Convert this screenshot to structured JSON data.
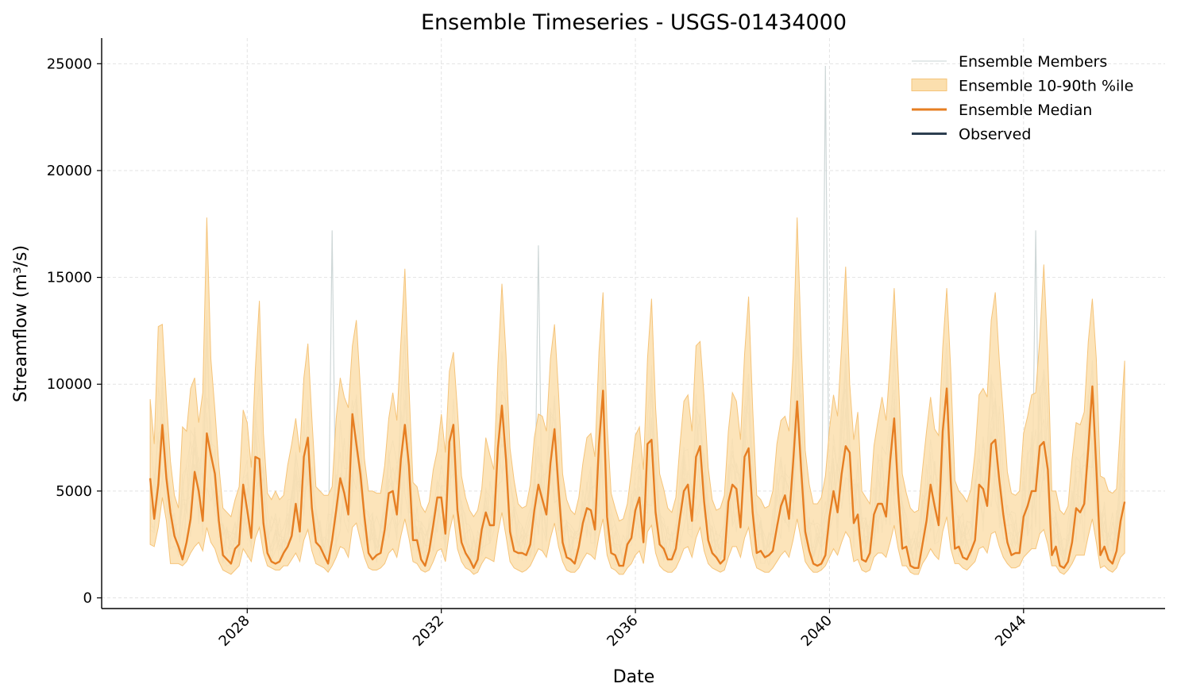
{
  "chart_data": {
    "type": "line",
    "title": "Ensemble Timeseries - USGS-01434000",
    "xlabel": "Date",
    "ylabel": "Streamflow (m³/s)",
    "x_type": "date",
    "xlim": [
      "2025-01-01",
      "2046-12-01"
    ],
    "ylim": [
      -500,
      26200
    ],
    "yticks": [
      0,
      5000,
      10000,
      15000,
      20000,
      25000
    ],
    "xticks": [
      "2028",
      "2032",
      "2036",
      "2040",
      "2044"
    ],
    "grid": true,
    "legend_position": "top-right",
    "legend": [
      {
        "label": "Ensemble Members",
        "kind": "line",
        "color": "#c9d3d3"
      },
      {
        "label": "Ensemble 10-90th %ile",
        "kind": "patch",
        "color": "#fbdfae"
      },
      {
        "label": "Ensemble Median",
        "kind": "line",
        "color": "#e67e22"
      },
      {
        "label": "Observed",
        "kind": "line",
        "color": "#2c3e50"
      }
    ],
    "colors": {
      "members": "#c9d3d3",
      "band_fill": "#fbdfae",
      "band_edge": "#f5c47a",
      "median": "#e67e22",
      "observed": "#2c3e50"
    },
    "dates_start": "2026-01",
    "dates_step": "monthly",
    "median": [
      5600,
      3700,
      5300,
      8100,
      5600,
      4000,
      2900,
      2400,
      1800,
      2600,
      3700,
      5900,
      5000,
      3600,
      7700,
      6700,
      5800,
      3600,
      2000,
      1800,
      1600,
      2300,
      2500,
      5300,
      4100,
      2800,
      6600,
      6500,
      3500,
      2100,
      1700,
      1600,
      1700,
      2100,
      2400,
      2900,
      4400,
      3100,
      6600,
      7500,
      4200,
      2600,
      2400,
      2000,
      1600,
      2700,
      4100,
      5600,
      4900,
      3900,
      8600,
      7200,
      5800,
      3800,
      2100,
      1800,
      2000,
      2100,
      3200,
      4900,
      5000,
      3900,
      6500,
      8100,
      6200,
      2700,
      2700,
      1800,
      1500,
      2200,
      3400,
      4700,
      4700,
      3000,
      7300,
      8100,
      4100,
      2600,
      2100,
      1800,
      1400,
      1800,
      3200,
      4000,
      3400,
      3400,
      7000,
      9000,
      6500,
      3100,
      2200,
      2100,
      2100,
      2000,
      2500,
      4100,
      5300,
      4600,
      3900,
      6300,
      7900,
      5100,
      2600,
      1900,
      1800,
      1600,
      2400,
      3500,
      4200,
      4100,
      3200,
      7200,
      9700,
      3800,
      2100,
      2000,
      1500,
      1500,
      2500,
      2800,
      4100,
      4700,
      2600,
      7200,
      7400,
      4000,
      2500,
      2300,
      1800,
      1800,
      2300,
      3700,
      5000,
      5300,
      3600,
      6600,
      7100,
      4500,
      2700,
      2100,
      1900,
      1600,
      1800,
      4500,
      5300,
      5100,
      3300,
      6600,
      7000,
      4000,
      2100,
      2200,
      1900,
      2000,
      2200,
      3300,
      4300,
      4800,
      3700,
      6300,
      9200,
      6000,
      3100,
      2200,
      1600,
      1500,
      1600,
      2000,
      3800,
      5000,
      4000,
      5800,
      7100,
      6800,
      3500,
      3900,
      1800,
      1700,
      2100,
      3900,
      4400,
      4400,
      3800,
      6400,
      8400,
      4900,
      2300,
      2400,
      1500,
      1400,
      1400,
      2500,
      3600,
      5300,
      4300,
      3400,
      7800,
      9800,
      5400,
      2300,
      2400,
      1900,
      1800,
      2200,
      2700,
      5300,
      5100,
      4300,
      7200,
      7400,
      5500,
      3900,
      2600,
      2000,
      2100,
      2100,
      3800,
      4300,
      5000,
      5000,
      7100,
      7300,
      6000,
      2000,
      2400,
      1500,
      1400,
      1700,
      2600,
      4200,
      4000,
      4400,
      7000,
      9900,
      6100,
      2000,
      2400,
      1800,
      1600,
      2200,
      3600,
      4500
    ],
    "band_upper": [
      9300,
      7200,
      12700,
      12800,
      9300,
      6400,
      4800,
      4200,
      8000,
      7800,
      9800,
      10300,
      8200,
      9600,
      17800,
      11200,
      8800,
      6200,
      4200,
      4000,
      3800,
      4600,
      5200,
      8800,
      8200,
      6100,
      10700,
      13900,
      7700,
      4900,
      4600,
      5000,
      4600,
      4800,
      6200,
      7200,
      8400,
      6800,
      10300,
      11900,
      8400,
      5200,
      5000,
      4800,
      4800,
      5200,
      8400,
      10300,
      9400,
      8900,
      11800,
      13000,
      9800,
      6500,
      5000,
      5000,
      4900,
      4900,
      6200,
      8400,
      9600,
      8300,
      12000,
      15400,
      9900,
      5400,
      5200,
      4300,
      4000,
      4500,
      6000,
      6900,
      8600,
      6800,
      10600,
      11500,
      8800,
      5700,
      4700,
      4100,
      3800,
      4100,
      5100,
      7500,
      6700,
      6000,
      10900,
      14700,
      11400,
      7000,
      5500,
      4400,
      4200,
      4300,
      5300,
      7500,
      8600,
      8500,
      7800,
      11200,
      12800,
      9600,
      5800,
      4600,
      4100,
      3900,
      4700,
      6300,
      7500,
      7700,
      6600,
      11500,
      14300,
      8100,
      4900,
      4200,
      3600,
      3700,
      4400,
      5900,
      7600,
      8000,
      6000,
      11200,
      14000,
      8900,
      5800,
      5100,
      4200,
      4000,
      4700,
      7100,
      9200,
      9500,
      7800,
      11800,
      12000,
      9400,
      6100,
      4600,
      4100,
      4200,
      4800,
      7800,
      9600,
      9200,
      7400,
      11400,
      14100,
      8900,
      4800,
      4600,
      4200,
      4300,
      5000,
      7200,
      8300,
      8500,
      7800,
      11300,
      17800,
      12000,
      6900,
      5300,
      4400,
      4400,
      4700,
      5700,
      7900,
      9500,
      8500,
      11800,
      15500,
      10000,
      7400,
      8700,
      5000,
      4700,
      4400,
      7100,
      8300,
      9400,
      8300,
      11000,
      14500,
      10500,
      5800,
      4900,
      4200,
      4000,
      4100,
      6000,
      7800,
      9400,
      7900,
      7600,
      11700,
      14500,
      10600,
      5500,
      5000,
      4800,
      4500,
      5100,
      6800,
      9500,
      9800,
      9400,
      13000,
      14300,
      11100,
      8600,
      5900,
      4900,
      4800,
      5000,
      7700,
      8500,
      9500,
      9600,
      12100,
      15600,
      11300,
      5000,
      5000,
      4100,
      3900,
      4300,
      6500,
      8200,
      8100,
      8700,
      12000,
      14000,
      11200,
      5700,
      5600,
      5000,
      4900,
      5100,
      8200,
      11100
    ],
    "band_lower": [
      2500,
      2400,
      3300,
      4700,
      3600,
      1600,
      1600,
      1600,
      1500,
      1700,
      2100,
      2400,
      2600,
      2200,
      3300,
      2600,
      2300,
      1700,
      1300,
      1200,
      1100,
      1300,
      1500,
      2300,
      2000,
      1700,
      2800,
      3300,
      2100,
      1500,
      1400,
      1300,
      1300,
      1500,
      1500,
      1800,
      2100,
      1700,
      2700,
      3200,
      2200,
      1600,
      1500,
      1400,
      1200,
      1500,
      1900,
      2400,
      2300,
      1900,
      3300,
      3500,
      2700,
      1900,
      1400,
      1300,
      1300,
      1400,
      1600,
      2100,
      2300,
      1900,
      2900,
      3700,
      2800,
      1700,
      1600,
      1300,
      1200,
      1300,
      1700,
      2200,
      2300,
      1700,
      3100,
      3900,
      2300,
      1700,
      1400,
      1300,
      1100,
      1200,
      1600,
      1900,
      1800,
      1700,
      3000,
      4000,
      2900,
      1700,
      1400,
      1300,
      1200,
      1300,
      1500,
      1900,
      2300,
      2200,
      1900,
      2800,
      3500,
      2400,
      1700,
      1300,
      1200,
      1200,
      1400,
      1800,
      2100,
      2000,
      1800,
      2900,
      3700,
      2000,
      1400,
      1300,
      1100,
      1100,
      1400,
      1600,
      2000,
      2200,
      1600,
      3100,
      3400,
      2100,
      1500,
      1300,
      1200,
      1200,
      1400,
      1800,
      2300,
      2400,
      1900,
      2800,
      3300,
      2200,
      1600,
      1400,
      1300,
      1200,
      1300,
      1900,
      2400,
      2400,
      1900,
      2800,
      3300,
      2000,
      1400,
      1300,
      1200,
      1200,
      1400,
      1700,
      2000,
      2200,
      1900,
      2700,
      3700,
      2700,
      1700,
      1400,
      1200,
      1200,
      1300,
      1500,
      1900,
      2300,
      2000,
      2600,
      3100,
      2800,
      1700,
      1800,
      1300,
      1200,
      1300,
      1900,
      2100,
      2100,
      1900,
      2600,
      3400,
      2300,
      1500,
      1500,
      1200,
      1100,
      1100,
      1600,
      1900,
      2300,
      2000,
      1800,
      3100,
      3800,
      2300,
      1600,
      1600,
      1400,
      1300,
      1500,
      1700,
      2300,
      2400,
      2100,
      3000,
      3100,
      2400,
      1900,
      1600,
      1400,
      1400,
      1500,
      1900,
      2100,
      2300,
      2300,
      3000,
      3200,
      2500,
      1500,
      1500,
      1200,
      1100,
      1300,
      1600,
      2000,
      2000,
      2000,
      2900,
      3700,
      2600,
      1400,
      1500,
      1300,
      1200,
      1400,
      1900,
      2100
    ],
    "member_peaks": [
      {
        "date": "2039-12",
        "value": 24900
      },
      {
        "date": "2029-10",
        "value": 17200
      },
      {
        "date": "2044-04",
        "value": 17200
      },
      {
        "date": "2034-01",
        "value": 16500
      }
    ]
  }
}
